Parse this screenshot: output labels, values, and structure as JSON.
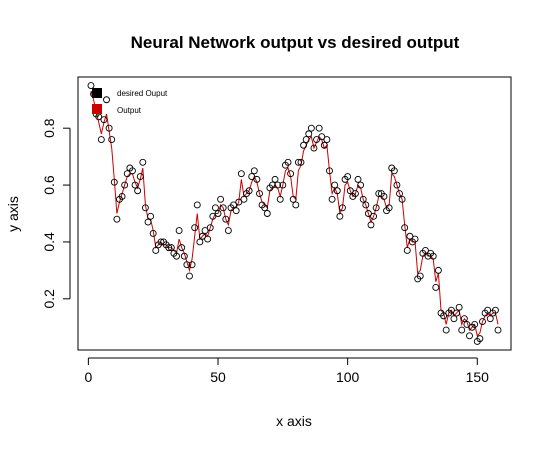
{
  "chart_data": {
    "type": "scatter",
    "title": "Neural Network output vs desired output",
    "xlabel": "x axis",
    "ylabel": "y axis",
    "xlim": [
      -4,
      163
    ],
    "ylim": [
      0.02,
      0.98
    ],
    "xticks": [
      0,
      50,
      100,
      150
    ],
    "yticks": [
      0.2,
      0.4,
      0.6,
      0.8
    ],
    "grid": false,
    "legend_position": "top-left",
    "legend": [
      {
        "label": "desired Ouput",
        "color": "#000000"
      },
      {
        "label": "Output",
        "color": "#cc0000"
      }
    ],
    "series": [
      {
        "name": "desired Ouput",
        "kind": "points",
        "color": "#000000",
        "x": [
          1,
          2,
          3,
          4,
          5,
          6,
          7,
          8,
          9,
          10,
          11,
          12,
          13,
          14,
          15,
          16,
          17,
          18,
          19,
          20,
          21,
          22,
          23,
          24,
          25,
          26,
          27,
          28,
          29,
          30,
          31,
          32,
          33,
          34,
          35,
          36,
          37,
          38,
          39,
          40,
          41,
          42,
          43,
          44,
          45,
          46,
          47,
          48,
          49,
          50,
          51,
          52,
          53,
          54,
          55,
          56,
          57,
          58,
          59,
          60,
          61,
          62,
          63,
          64,
          65,
          66,
          67,
          68,
          69,
          70,
          71,
          72,
          73,
          74,
          75,
          76,
          77,
          78,
          79,
          80,
          81,
          82,
          83,
          84,
          85,
          86,
          87,
          88,
          89,
          90,
          91,
          92,
          93,
          94,
          95,
          96,
          97,
          98,
          99,
          100,
          101,
          102,
          103,
          104,
          105,
          106,
          107,
          108,
          109,
          110,
          111,
          112,
          113,
          114,
          115,
          116,
          117,
          118,
          119,
          120,
          121,
          122,
          123,
          124,
          125,
          126,
          127,
          128,
          129,
          130,
          131,
          132,
          133,
          134,
          135,
          136,
          137,
          138,
          139,
          140,
          141,
          142,
          143,
          144,
          145,
          146,
          147,
          148,
          149,
          150,
          151,
          152,
          153,
          154,
          155,
          156,
          157,
          158
        ],
        "y": [
          0.95,
          0.92,
          0.85,
          0.84,
          0.76,
          0.83,
          0.9,
          0.8,
          0.76,
          0.61,
          0.48,
          0.55,
          0.56,
          0.6,
          0.64,
          0.66,
          0.65,
          0.6,
          0.58,
          0.63,
          0.68,
          0.52,
          0.47,
          0.49,
          0.43,
          0.37,
          0.39,
          0.4,
          0.4,
          0.39,
          0.38,
          0.38,
          0.36,
          0.35,
          0.44,
          0.38,
          0.35,
          0.32,
          0.28,
          0.32,
          0.45,
          0.53,
          0.4,
          0.42,
          0.44,
          0.41,
          0.45,
          0.49,
          0.52,
          0.5,
          0.55,
          0.52,
          0.48,
          0.44,
          0.52,
          0.53,
          0.51,
          0.54,
          0.64,
          0.55,
          0.57,
          0.58,
          0.63,
          0.65,
          0.62,
          0.57,
          0.53,
          0.52,
          0.5,
          0.59,
          0.6,
          0.62,
          0.6,
          0.55,
          0.6,
          0.67,
          0.68,
          0.64,
          0.55,
          0.53,
          0.68,
          0.68,
          0.74,
          0.76,
          0.78,
          0.8,
          0.73,
          0.76,
          0.8,
          0.77,
          0.74,
          0.76,
          0.65,
          0.55,
          0.6,
          0.58,
          0.49,
          0.52,
          0.62,
          0.63,
          0.58,
          0.56,
          0.57,
          0.62,
          0.6,
          0.55,
          0.53,
          0.5,
          0.46,
          0.49,
          0.52,
          0.57,
          0.57,
          0.56,
          0.51,
          0.52,
          0.66,
          0.65,
          0.6,
          0.57,
          0.55,
          0.45,
          0.37,
          0.42,
          0.4,
          0.41,
          0.27,
          0.28,
          0.36,
          0.37,
          0.35,
          0.36,
          0.35,
          0.24,
          0.3,
          0.15,
          0.14,
          0.09,
          0.15,
          0.16,
          0.13,
          0.15,
          0.17,
          0.09,
          0.13,
          0.11,
          0.07,
          0.1,
          0.11,
          0.05,
          0.06,
          0.12,
          0.15,
          0.16,
          0.13,
          0.15,
          0.16,
          0.09
        ]
      },
      {
        "name": "Output",
        "kind": "line",
        "color": "#cc0000",
        "x": [
          1,
          2,
          3,
          4,
          5,
          6,
          7,
          8,
          9,
          10,
          11,
          12,
          13,
          14,
          15,
          16,
          17,
          18,
          19,
          20,
          21,
          22,
          23,
          24,
          25,
          26,
          27,
          28,
          29,
          30,
          31,
          32,
          33,
          34,
          35,
          36,
          37,
          38,
          39,
          40,
          41,
          42,
          43,
          44,
          45,
          46,
          47,
          48,
          49,
          50,
          51,
          52,
          53,
          54,
          55,
          56,
          57,
          58,
          59,
          60,
          61,
          62,
          63,
          64,
          65,
          66,
          67,
          68,
          69,
          70,
          71,
          72,
          73,
          74,
          75,
          76,
          77,
          78,
          79,
          80,
          81,
          82,
          83,
          84,
          85,
          86,
          87,
          88,
          89,
          90,
          91,
          92,
          93,
          94,
          95,
          96,
          97,
          98,
          99,
          100,
          101,
          102,
          103,
          104,
          105,
          106,
          107,
          108,
          109,
          110,
          111,
          112,
          113,
          114,
          115,
          116,
          117,
          118,
          119,
          120,
          121,
          122,
          123,
          124,
          125,
          126,
          127,
          128,
          129,
          130,
          131,
          132,
          133,
          134,
          135,
          136,
          137,
          138,
          139,
          140,
          141,
          142,
          143,
          144,
          145,
          146,
          147,
          148,
          149,
          150,
          151,
          152,
          153,
          154,
          155,
          156,
          157,
          158
        ],
        "y": [
          0.93,
          0.9,
          0.86,
          0.82,
          0.78,
          0.82,
          0.85,
          0.79,
          0.73,
          0.62,
          0.5,
          0.54,
          0.57,
          0.6,
          0.63,
          0.64,
          0.64,
          0.61,
          0.59,
          0.62,
          0.66,
          0.53,
          0.48,
          0.48,
          0.44,
          0.38,
          0.39,
          0.4,
          0.39,
          0.39,
          0.38,
          0.38,
          0.37,
          0.36,
          0.41,
          0.38,
          0.36,
          0.33,
          0.3,
          0.34,
          0.42,
          0.5,
          0.41,
          0.42,
          0.43,
          0.42,
          0.45,
          0.48,
          0.5,
          0.5,
          0.53,
          0.52,
          0.48,
          0.46,
          0.51,
          0.52,
          0.52,
          0.54,
          0.62,
          0.56,
          0.57,
          0.58,
          0.61,
          0.63,
          0.61,
          0.57,
          0.54,
          0.53,
          0.52,
          0.58,
          0.59,
          0.6,
          0.59,
          0.56,
          0.6,
          0.65,
          0.66,
          0.63,
          0.56,
          0.55,
          0.65,
          0.67,
          0.72,
          0.74,
          0.76,
          0.77,
          0.73,
          0.75,
          0.77,
          0.76,
          0.73,
          0.74,
          0.65,
          0.57,
          0.59,
          0.57,
          0.5,
          0.52,
          0.6,
          0.61,
          0.58,
          0.56,
          0.57,
          0.6,
          0.59,
          0.55,
          0.53,
          0.5,
          0.47,
          0.49,
          0.52,
          0.56,
          0.56,
          0.55,
          0.52,
          0.53,
          0.64,
          0.63,
          0.6,
          0.57,
          0.55,
          0.46,
          0.38,
          0.41,
          0.4,
          0.4,
          0.29,
          0.3,
          0.35,
          0.36,
          0.35,
          0.35,
          0.34,
          0.26,
          0.29,
          0.16,
          0.15,
          0.11,
          0.15,
          0.16,
          0.14,
          0.15,
          0.16,
          0.11,
          0.13,
          0.12,
          0.09,
          0.1,
          0.11,
          0.07,
          0.08,
          0.12,
          0.14,
          0.15,
          0.14,
          0.15,
          0.15,
          0.11
        ]
      }
    ]
  }
}
